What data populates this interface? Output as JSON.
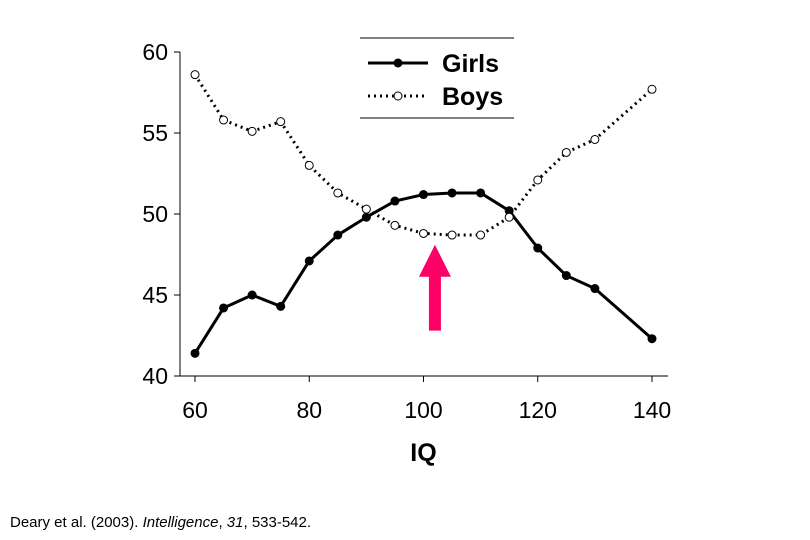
{
  "chart_data": {
    "type": "line",
    "xlabel": "IQ",
    "ylabel": "",
    "xlim": [
      60,
      140
    ],
    "ylim": [
      40,
      60
    ],
    "xticks": [
      60,
      80,
      100,
      120,
      140
    ],
    "yticks": [
      40,
      45,
      50,
      55,
      60
    ],
    "grid": false,
    "legend_position": "top-center",
    "x": [
      60,
      65,
      70,
      75,
      80,
      85,
      90,
      95,
      100,
      105,
      110,
      115,
      120,
      125,
      130,
      140
    ],
    "series": [
      {
        "name": "Girls",
        "style": "solid",
        "marker": "filled-circle",
        "values": [
          41.4,
          44.2,
          45.0,
          44.3,
          47.1,
          48.7,
          49.8,
          50.8,
          51.2,
          51.3,
          51.3,
          50.2,
          47.9,
          46.2,
          45.4,
          42.3
        ]
      },
      {
        "name": "Boys",
        "style": "dotted",
        "marker": "open-circle",
        "values": [
          58.6,
          55.8,
          55.1,
          55.7,
          53.0,
          51.3,
          50.3,
          49.3,
          48.8,
          48.7,
          48.7,
          49.8,
          52.1,
          53.8,
          54.6,
          57.7
        ]
      }
    ],
    "annotations": [
      {
        "type": "arrow",
        "color": "#ff0066",
        "direction": "up",
        "x": 102,
        "y_from": 42.8,
        "y_to": 48.1
      }
    ]
  },
  "citation": {
    "authors": "Deary et al. (2003). ",
    "journal": "Intelligence",
    "sep1": ", ",
    "volume": "31",
    "pages": ", 533-542."
  }
}
